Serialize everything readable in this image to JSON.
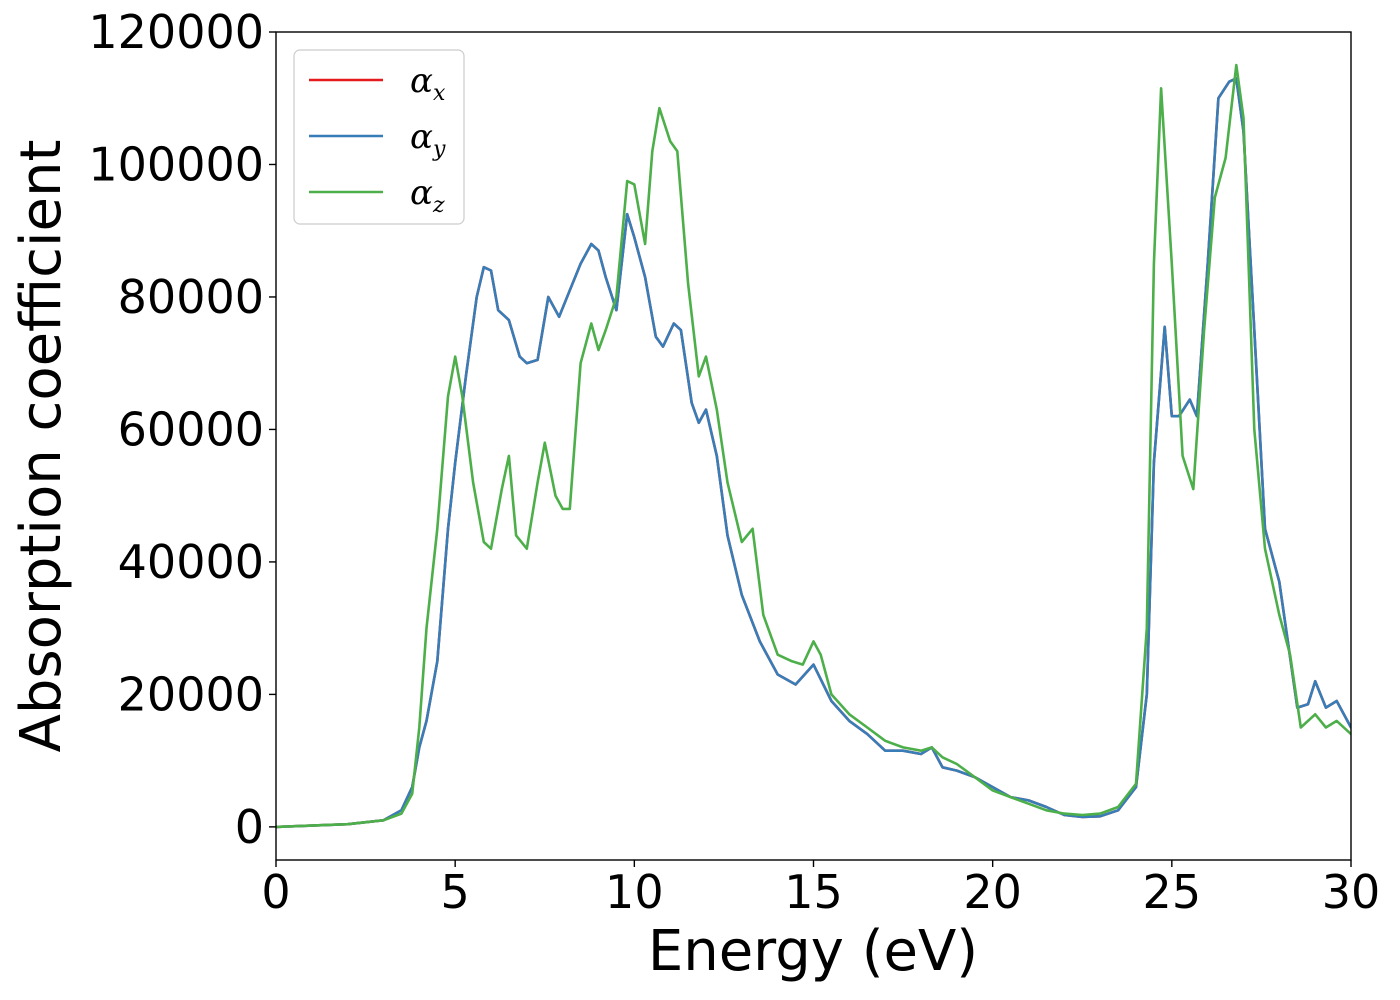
{
  "chart_data": {
    "type": "line",
    "title": "",
    "xlabel": "Energy (eV)",
    "ylabel": "Absorption coefficient",
    "xlim": [
      0,
      30
    ],
    "ylim": [
      -5000,
      120000
    ],
    "xticks": [
      0,
      5,
      10,
      15,
      20,
      25,
      30
    ],
    "yticks": [
      0,
      20000,
      40000,
      60000,
      80000,
      100000,
      120000
    ],
    "grid": false,
    "legend_position": "top-left",
    "series": [
      {
        "name": "α_x",
        "label_base": "α",
        "label_sub": "x",
        "color": "#e41a1c",
        "x": [
          0,
          1,
          2,
          3,
          3.5,
          3.8,
          4.0,
          4.2,
          4.5,
          4.8,
          5.0,
          5.3,
          5.6,
          5.8,
          6.0,
          6.2,
          6.5,
          6.8,
          7.0,
          7.3,
          7.6,
          7.9,
          8.2,
          8.5,
          8.8,
          9.0,
          9.2,
          9.5,
          9.8,
          10.0,
          10.3,
          10.6,
          10.8,
          11.1,
          11.3,
          11.6,
          11.8,
          12.0,
          12.3,
          12.6,
          13.0,
          13.5,
          14.0,
          14.5,
          15.0,
          15.5,
          16.0,
          16.5,
          17.0,
          17.5,
          18.0,
          18.3,
          18.6,
          19.0,
          19.5,
          20.0,
          20.5,
          21.0,
          21.5,
          22.0,
          22.5,
          23.0,
          23.5,
          24.0,
          24.3,
          24.5,
          24.8,
          25.0,
          25.2,
          25.5,
          25.7,
          26.0,
          26.3,
          26.6,
          26.8,
          27.0,
          27.3,
          27.6,
          28.0,
          28.5,
          28.8,
          29.0,
          29.3,
          29.6,
          30.0
        ],
        "y": [
          0,
          200,
          400,
          1000,
          2500,
          6000,
          12000,
          16000,
          25000,
          45000,
          55000,
          68000,
          80000,
          84500,
          84000,
          78000,
          76500,
          71000,
          70000,
          70500,
          80000,
          77000,
          81000,
          85000,
          88000,
          87000,
          83000,
          78000,
          92500,
          89000,
          83000,
          74000,
          72500,
          76000,
          75000,
          64000,
          61000,
          63000,
          56000,
          44000,
          35000,
          28000,
          23000,
          21500,
          24500,
          19000,
          16000,
          14000,
          11500,
          11500,
          11000,
          12000,
          9000,
          8500,
          7500,
          6000,
          4500,
          4000,
          3000,
          1800,
          1500,
          1600,
          2500,
          6000,
          20000,
          55000,
          75500,
          62000,
          62000,
          64500,
          62000,
          85000,
          110000,
          112500,
          113000,
          105000,
          75000,
          45000,
          37000,
          18000,
          18500,
          22000,
          18000,
          19000,
          15000
        ]
      },
      {
        "name": "α_y",
        "label_base": "α",
        "label_sub": "y",
        "color": "#377eb8",
        "x": [
          0,
          1,
          2,
          3,
          3.5,
          3.8,
          4.0,
          4.2,
          4.5,
          4.8,
          5.0,
          5.3,
          5.6,
          5.8,
          6.0,
          6.2,
          6.5,
          6.8,
          7.0,
          7.3,
          7.6,
          7.9,
          8.2,
          8.5,
          8.8,
          9.0,
          9.2,
          9.5,
          9.8,
          10.0,
          10.3,
          10.6,
          10.8,
          11.1,
          11.3,
          11.6,
          11.8,
          12.0,
          12.3,
          12.6,
          13.0,
          13.5,
          14.0,
          14.5,
          15.0,
          15.5,
          16.0,
          16.5,
          17.0,
          17.5,
          18.0,
          18.3,
          18.6,
          19.0,
          19.5,
          20.0,
          20.5,
          21.0,
          21.5,
          22.0,
          22.5,
          23.0,
          23.5,
          24.0,
          24.3,
          24.5,
          24.8,
          25.0,
          25.2,
          25.5,
          25.7,
          26.0,
          26.3,
          26.6,
          26.8,
          27.0,
          27.3,
          27.6,
          28.0,
          28.5,
          28.8,
          29.0,
          29.3,
          29.6,
          30.0
        ],
        "y": [
          0,
          200,
          400,
          1000,
          2500,
          6000,
          12000,
          16000,
          25000,
          45000,
          55000,
          68000,
          80000,
          84500,
          84000,
          78000,
          76500,
          71000,
          70000,
          70500,
          80000,
          77000,
          81000,
          85000,
          88000,
          87000,
          83000,
          78000,
          92500,
          89000,
          83000,
          74000,
          72500,
          76000,
          75000,
          64000,
          61000,
          63000,
          56000,
          44000,
          35000,
          28000,
          23000,
          21500,
          24500,
          19000,
          16000,
          14000,
          11500,
          11500,
          11000,
          12000,
          9000,
          8500,
          7500,
          6000,
          4500,
          4000,
          3000,
          1800,
          1500,
          1600,
          2500,
          6000,
          20000,
          55000,
          75500,
          62000,
          62000,
          64500,
          62000,
          85000,
          110000,
          112500,
          113000,
          105000,
          75000,
          45000,
          37000,
          18000,
          18500,
          22000,
          18000,
          19000,
          15000
        ]
      },
      {
        "name": "α_z",
        "label_base": "α",
        "label_sub": "z",
        "color": "#4daf4a",
        "x": [
          0,
          1,
          2,
          3,
          3.5,
          3.8,
          4.0,
          4.2,
          4.5,
          4.8,
          5.0,
          5.2,
          5.5,
          5.8,
          6.0,
          6.3,
          6.5,
          6.7,
          7.0,
          7.3,
          7.5,
          7.8,
          8.0,
          8.2,
          8.5,
          8.8,
          9.0,
          9.2,
          9.5,
          9.8,
          10.0,
          10.3,
          10.5,
          10.7,
          11.0,
          11.2,
          11.5,
          11.8,
          12.0,
          12.3,
          12.6,
          13.0,
          13.3,
          13.6,
          14.0,
          14.4,
          14.7,
          15.0,
          15.2,
          15.5,
          16.0,
          16.5,
          17.0,
          17.5,
          18.0,
          18.3,
          18.6,
          19.0,
          19.5,
          20.0,
          20.5,
          21.0,
          21.5,
          22.0,
          22.5,
          23.0,
          23.5,
          24.0,
          24.3,
          24.5,
          24.7,
          25.0,
          25.3,
          25.6,
          25.9,
          26.2,
          26.5,
          26.8,
          27.0,
          27.3,
          27.6,
          28.0,
          28.3,
          28.6,
          29.0,
          29.3,
          29.6,
          30.0
        ],
        "y": [
          0,
          200,
          400,
          1000,
          2000,
          5000,
          15000,
          30000,
          45000,
          65000,
          71000,
          65000,
          52000,
          43000,
          42000,
          51000,
          56000,
          44000,
          42000,
          52000,
          58000,
          50000,
          48000,
          48000,
          70000,
          76000,
          72000,
          75000,
          80000,
          97500,
          97000,
          88000,
          102000,
          108500,
          103500,
          102000,
          82000,
          68000,
          71000,
          63000,
          52000,
          43000,
          45000,
          32000,
          26000,
          25000,
          24500,
          28000,
          26000,
          20000,
          17000,
          15000,
          13000,
          12000,
          11500,
          12000,
          10500,
          9500,
          7500,
          5500,
          4500,
          3500,
          2500,
          2000,
          1800,
          2000,
          3000,
          6500,
          30000,
          85000,
          111500,
          85000,
          56000,
          51000,
          75000,
          95000,
          101000,
          115000,
          107000,
          60000,
          42000,
          32000,
          26000,
          15000,
          17000,
          15000,
          16000,
          14000
        ]
      }
    ]
  }
}
